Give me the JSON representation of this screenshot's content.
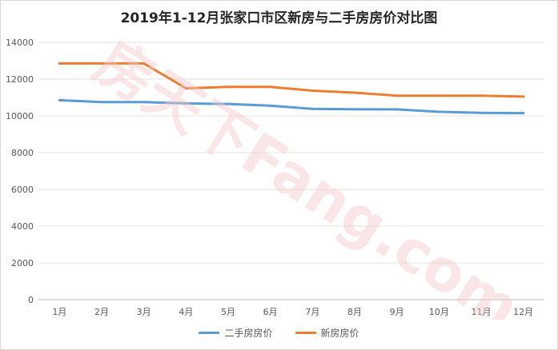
{
  "chart_data": {
    "type": "line",
    "title": "2019年1-12月张家口市区新房与二手房房价对比图",
    "categories": [
      "1月",
      "2月",
      "3月",
      "4月",
      "5月",
      "6月",
      "7月",
      "8月",
      "9月",
      "10月",
      "11月",
      "12月"
    ],
    "ylim": [
      0,
      14000
    ],
    "yticks": [
      0,
      2000,
      4000,
      6000,
      8000,
      10000,
      12000,
      14000
    ],
    "grid": true,
    "legend_position": "bottom",
    "series": [
      {
        "name": "二手房房价",
        "color": "#5b9bd5",
        "values": [
          10850,
          10750,
          10750,
          10680,
          10650,
          10550,
          10380,
          10360,
          10350,
          10220,
          10160,
          10150
        ]
      },
      {
        "name": "新房房价",
        "color": "#ed7d31",
        "values": [
          12850,
          12850,
          12850,
          11500,
          11580,
          11580,
          11370,
          11260,
          11100,
          11100,
          11100,
          11050
        ]
      }
    ]
  },
  "watermark": "房天下Fang.com"
}
